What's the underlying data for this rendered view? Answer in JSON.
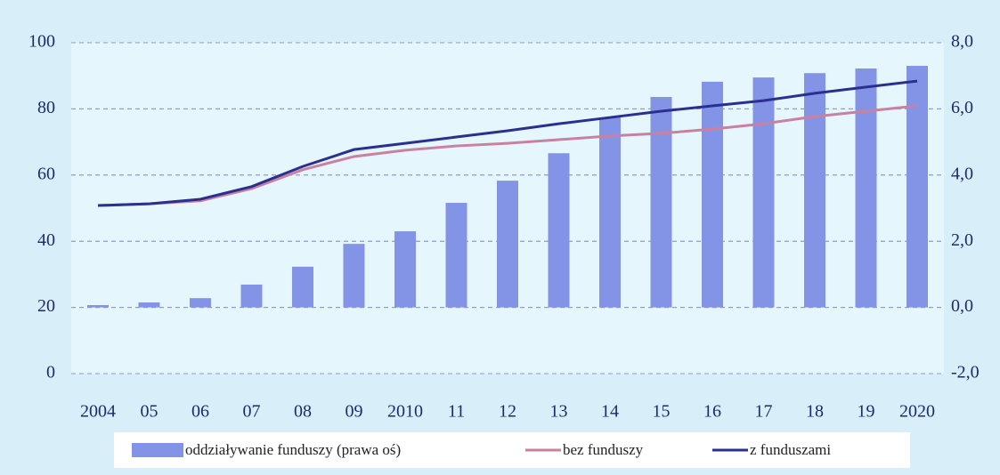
{
  "chart_data": {
    "type": "bar-line",
    "categories": [
      "2004",
      "05",
      "06",
      "07",
      "08",
      "09",
      "2010",
      "11",
      "12",
      "13",
      "14",
      "15",
      "16",
      "17",
      "18",
      "19",
      "2020"
    ],
    "series": [
      {
        "name": "oddziaływanie funduszy (prawa oś)",
        "type": "bar",
        "axis": "y2",
        "color": "#8394e6",
        "values": [
          0.07,
          0.15,
          0.28,
          0.69,
          1.23,
          1.92,
          2.3,
          3.16,
          3.83,
          4.66,
          5.74,
          6.36,
          6.82,
          6.95,
          7.08,
          7.22,
          7.3
        ]
      },
      {
        "name": "bez funduszy",
        "type": "line",
        "axis": "y",
        "color": "#c9819f",
        "values": [
          50.8,
          51.3,
          52.2,
          55.9,
          61.6,
          65.6,
          67.5,
          68.8,
          69.6,
          70.7,
          71.8,
          72.6,
          73.9,
          75.5,
          77.7,
          79.3,
          80.9
        ]
      },
      {
        "name": "z funduszami",
        "type": "line",
        "axis": "y",
        "color": "#2b2f8f",
        "values": [
          50.8,
          51.3,
          52.7,
          56.5,
          62.6,
          67.7,
          69.6,
          71.5,
          73.4,
          75.5,
          77.4,
          79.3,
          80.9,
          82.5,
          84.7,
          86.6,
          88.4
        ]
      }
    ],
    "ylim": [
      0,
      100
    ],
    "yticks": [
      0,
      20,
      40,
      60,
      80,
      100
    ],
    "y2lim": [
      -2,
      8
    ],
    "y2ticks": [
      {
        "value": -2,
        "label": "-2,0"
      },
      {
        "value": 0,
        "label": "0,0"
      },
      {
        "value": 2,
        "label": "2,0"
      },
      {
        "value": 4,
        "label": "4,0"
      },
      {
        "value": 6,
        "label": "6,0"
      },
      {
        "value": 8,
        "label": "8,0"
      }
    ],
    "grid": true,
    "legend": "bottom"
  }
}
